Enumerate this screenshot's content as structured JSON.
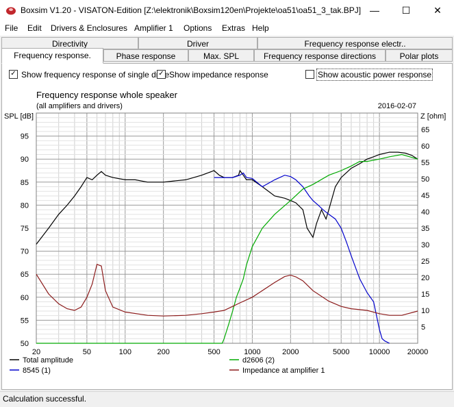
{
  "window": {
    "title": "Boxsim V1.20 - VISATON-Edition [Z:\\elektronik\\Boxsim120en\\Projekte\\oa51\\oa51_3_tak.BPJ]",
    "minimize": "—",
    "maximize": "☐",
    "close": "✕"
  },
  "menu": [
    "File",
    "Edit",
    "Drivers & Enclosures",
    "Amplifier 1",
    "Options",
    "Extras",
    "Help"
  ],
  "tabs_back": [
    "Directivity",
    "Driver",
    "Frequency response electr.."
  ],
  "tabs_front": [
    "Frequency response.",
    "Phase response",
    "Max. SPL",
    "Frequency response directions",
    "Polar plots"
  ],
  "options": {
    "single_drive": {
      "label": "Show frequency response of single drive",
      "checked": true,
      "mark": "✓"
    },
    "impedance": {
      "label": "Show impedance response",
      "checked": true,
      "mark": "✓"
    },
    "acoustic_power": {
      "label": "Show acoustic power response",
      "checked": false,
      "mark": ""
    }
  },
  "status": "Calculation successful.",
  "chart_data": {
    "type": "line",
    "title": "Frequency response whole speaker",
    "subtitle": "(all amplifiers and drivers)",
    "date": "2016-02-07",
    "ylabel": "SPL [dB]",
    "ylabel_right": "Z [ohm]",
    "x_scale": "log",
    "xlim": [
      20,
      20000
    ],
    "ylim": [
      50,
      100
    ],
    "ylim_right": [
      0,
      70
    ],
    "x_ticks": [
      "20",
      "50",
      "100",
      "200",
      "500",
      "1000",
      "2000",
      "5000",
      "10000",
      "20000"
    ],
    "y_ticks": [
      "95",
      "90",
      "85",
      "80",
      "75",
      "70",
      "65",
      "60",
      "55",
      "50"
    ],
    "y_ticks_right": [
      "65",
      "60",
      "55",
      "50",
      "45",
      "40",
      "35",
      "30",
      "25",
      "20",
      "15",
      "10",
      "5"
    ],
    "grid": true,
    "legend_position": "bottom",
    "series": [
      {
        "name": "Total amplitude",
        "axis": "left",
        "color": "#000000",
        "x": [
          20,
          25,
          30,
          35,
          40,
          45,
          50,
          55,
          60,
          65,
          70,
          80,
          100,
          120,
          150,
          200,
          250,
          300,
          400,
          500,
          550,
          600,
          700,
          780,
          800,
          850,
          900,
          1000,
          1200,
          1500,
          1800,
          2000,
          2200,
          2500,
          2700,
          3000,
          3200,
          3500,
          3800,
          4000,
          4500,
          5000,
          6000,
          7000,
          8000,
          9000,
          10000,
          12000,
          14000,
          16000,
          18000,
          20000
        ],
        "y": [
          71.5,
          75,
          78,
          80,
          82,
          84,
          86,
          85.5,
          86.5,
          87.3,
          86.5,
          86,
          85.5,
          85.5,
          85,
          85,
          85.3,
          85.5,
          86.5,
          87.5,
          86.5,
          86,
          86,
          86.5,
          87.5,
          86.5,
          85.5,
          85.5,
          84,
          82,
          81.5,
          81,
          80.5,
          79,
          75,
          73,
          76,
          79,
          77,
          79,
          84,
          86,
          88,
          89,
          90,
          90.5,
          91,
          91.5,
          91.5,
          91.3,
          90.8,
          90
        ]
      },
      {
        "name": "8545 (1)",
        "axis": "left",
        "color": "#0000cc",
        "x": [
          500,
          600,
          700,
          800,
          850,
          900,
          1000,
          1200,
          1500,
          1800,
          2000,
          2200,
          2500,
          2800,
          3000,
          3300,
          3600,
          4000,
          4500,
          5000,
          5500,
          6000,
          7000,
          8000,
          9000,
          10000,
          10500,
          11000,
          12000
        ],
        "y": [
          86,
          86,
          86,
          86.5,
          87,
          86,
          85.8,
          84,
          85.5,
          86.5,
          86.2,
          85.5,
          84,
          82,
          81,
          80,
          79,
          78,
          77,
          75,
          72,
          69,
          64,
          61,
          59,
          53,
          51,
          50.5,
          50
        ]
      },
      {
        "name": "d2606 (2)",
        "axis": "left",
        "color": "#00aa00",
        "x": [
          20,
          500,
          580,
          600,
          650,
          700,
          750,
          800,
          850,
          900,
          1000,
          1200,
          1500,
          2000,
          2500,
          3000,
          4000,
          5000,
          6000,
          7000,
          8000,
          10000,
          12000,
          15000,
          20000
        ],
        "y": [
          50,
          50,
          50,
          51,
          54,
          57,
          60,
          62,
          64,
          67,
          71,
          75,
          78,
          81,
          83.5,
          84.5,
          86.5,
          87.5,
          88.5,
          89.5,
          89.5,
          90,
          90.5,
          91,
          90
        ]
      },
      {
        "name": "Impedance at amplifier 1",
        "axis": "right",
        "color": "#8b1a1a",
        "x": [
          20,
          25,
          30,
          35,
          40,
          45,
          50,
          55,
          60,
          65,
          70,
          80,
          100,
          150,
          200,
          300,
          400,
          500,
          600,
          700,
          800,
          1000,
          1500,
          1800,
          2000,
          2200,
          2500,
          3000,
          4000,
          5000,
          6000,
          8000,
          10000,
          12000,
          15000,
          20000
        ],
        "y": [
          21,
          15,
          12,
          10.5,
          10,
          11,
          14,
          18,
          24,
          23.5,
          16,
          11,
          9.5,
          8.5,
          8.3,
          8.5,
          9,
          9.5,
          10,
          11.2,
          12.3,
          14,
          18.5,
          20.3,
          20.7,
          20.2,
          19,
          16,
          12.8,
          11.2,
          10.5,
          10,
          9,
          8.5,
          8.5,
          9.8
        ]
      }
    ]
  }
}
